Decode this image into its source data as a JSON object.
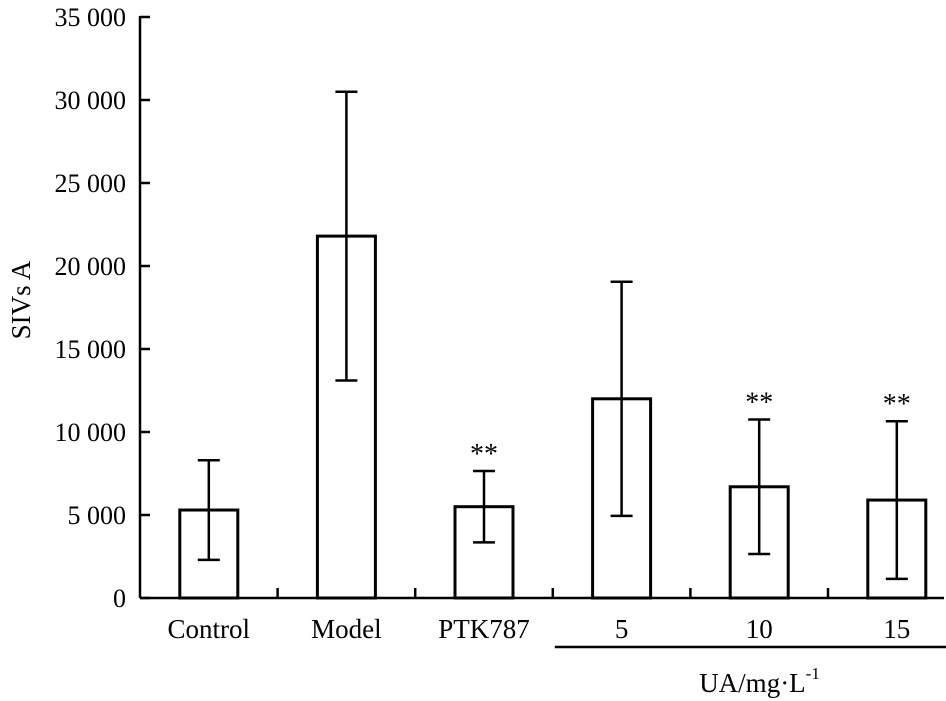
{
  "chart_data": {
    "type": "bar",
    "categories": [
      "Control",
      "Model",
      "PTK787",
      "5",
      "10",
      "15"
    ],
    "values": [
      5300,
      21800,
      5500,
      12000,
      6700,
      5900
    ],
    "errors": [
      3000,
      8700,
      2150,
      7050,
      4050,
      4750
    ],
    "significance": [
      "",
      "",
      "**",
      "",
      "**",
      "**"
    ],
    "ylabel": "SIVs A",
    "group_label": {
      "text": "UA/mg·L",
      "superscript": "-1",
      "categories": [
        "5",
        "10",
        "15"
      ]
    },
    "ylim": [
      0,
      35000
    ],
    "yticks": [
      0,
      5000,
      10000,
      15000,
      20000,
      25000,
      30000,
      35000
    ],
    "ytick_labels": [
      "0",
      "5 000",
      "10 000",
      "15 000",
      "20 000",
      "25 000",
      "30 000",
      "35 000"
    ],
    "grid": false,
    "bar_fill": "#ffffff",
    "bar_stroke": "#000000"
  }
}
